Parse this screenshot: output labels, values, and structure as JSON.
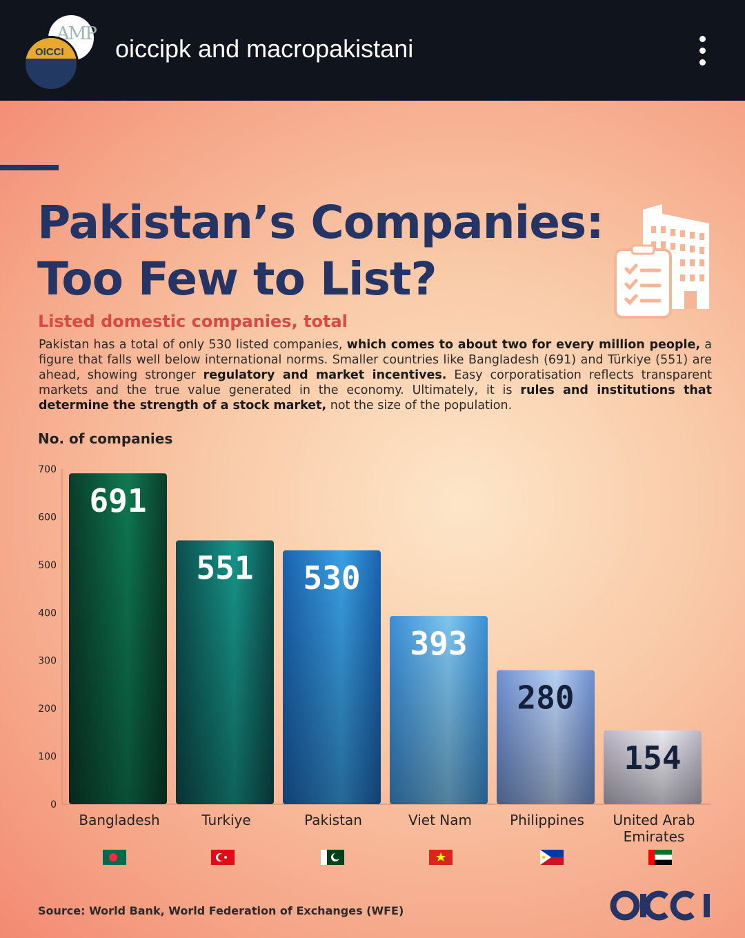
{
  "header": {
    "account": "oiccipk and macropakistani",
    "avatar_back_text": "AMP",
    "avatar_front_text": "OICCI"
  },
  "poster": {
    "title_line1": "Pakistan’s Companies:",
    "title_line2": "Too Few to List?",
    "subtitle": "Listed domestic companies, total",
    "desc": {
      "p1": "Pakistan has a total of only 530 listed companies,",
      "b1": "which comes to about two for every million people,",
      "p2": "a figure that falls well below international norms. Smaller countries like Bangladesh (691) and Türkiye (551) are ahead, showing stronger",
      "b2": "regulatory and market incentives.",
      "p3": "Easy corporatisation reflects transparent markets and the true value generated in the economy. Ultimately, it is",
      "b3": "rules and institutions that determine the strength of a stock market,",
      "p4": "not the size of the population."
    },
    "source": "Source: World Bank, World Federation of Exchanges (WFE)",
    "logo_text": "OICCI",
    "colors": {
      "navy": "#243565",
      "red": "#d84a45"
    }
  },
  "chart_data": {
    "type": "bar",
    "title": "Listed domestic companies, total",
    "ylabel": "No. of companies",
    "ylim": [
      0,
      700
    ],
    "yticks": [
      0,
      100,
      200,
      300,
      400,
      500,
      600,
      700
    ],
    "grid": false,
    "legend": "none",
    "categories": [
      "Bangladesh",
      "Turkiye",
      "Pakistan",
      "Viet Nam",
      "Philippines",
      "United Arab Emirates"
    ],
    "category_lines": [
      [
        "Bangladesh"
      ],
      [
        "Turkiye"
      ],
      [
        "Pakistan"
      ],
      [
        "Viet Nam"
      ],
      [
        "Philippines"
      ],
      [
        "United Arab",
        "Emirates"
      ]
    ],
    "values": [
      691,
      551,
      530,
      393,
      280,
      154
    ],
    "bar_colors": [
      [
        "#0a3d2a",
        "#0e7a52"
      ],
      [
        "#0c4e4d",
        "#17958a"
      ],
      [
        "#1a63b0",
        "#3aa0e4"
      ],
      [
        "#3b8fd6",
        "#7ec5ef"
      ],
      [
        "#6f8fd0",
        "#b8d0f4"
      ],
      [
        "#b9b5c4",
        "#eaeaf0"
      ]
    ],
    "label_colors": [
      "#ffffff",
      "#ffffff",
      "#ffffff",
      "#ffffff",
      "#15203a",
      "#15203a"
    ],
    "flag_icons": [
      "bangladesh-flag-icon",
      "turkiye-flag-icon",
      "pakistan-flag-icon",
      "viet-nam-flag-icon",
      "philippines-flag-icon",
      "uae-flag-icon"
    ]
  }
}
